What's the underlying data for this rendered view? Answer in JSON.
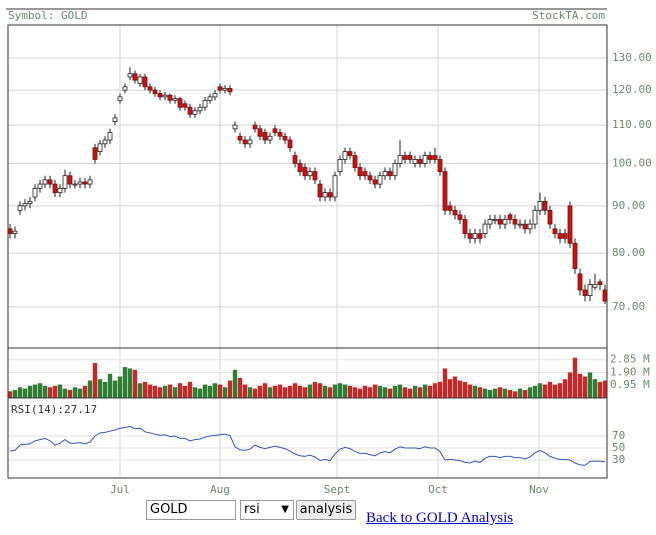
{
  "chart_data": {
    "type": "candlestick",
    "symbol_label": "Symbol: GOLD",
    "site": "StockTA.com",
    "log_y": true,
    "grid": true,
    "ylim": [
      63.2,
      141.1
    ],
    "yticks": [
      {
        "value": 130,
        "label": "130.00"
      },
      {
        "value": 120,
        "label": "120.00"
      },
      {
        "value": 110,
        "label": "110.00"
      },
      {
        "value": 100,
        "label": "100.00"
      },
      {
        "value": 90,
        "label": "90.00"
      },
      {
        "value": 80,
        "label": "80.00"
      },
      {
        "value": 70,
        "label": "70.00"
      }
    ],
    "xlim": [
      -0.4,
      119.4
    ],
    "xticks": [
      {
        "value": 22,
        "label": "Jul"
      },
      {
        "value": 42,
        "label": "Aug"
      },
      {
        "value": 65.4,
        "label": "Sept"
      },
      {
        "value": 85.6,
        "label": "Oct"
      },
      {
        "value": 105.8,
        "label": "Nov"
      }
    ],
    "up_color": "#ffffff",
    "down_color": "#cc1111",
    "candles": [
      [
        85,
        86,
        83,
        84
      ],
      [
        84,
        85.5,
        83,
        84.5
      ],
      [
        89,
        91,
        88,
        90
      ],
      [
        90,
        91.5,
        89,
        90.5
      ],
      [
        90.5,
        92,
        89.5,
        91
      ],
      [
        92,
        95,
        91,
        94
      ],
      [
        94,
        96,
        93,
        95
      ],
      [
        95,
        97,
        94,
        96
      ],
      [
        96,
        97,
        94,
        95
      ],
      [
        95,
        96,
        92,
        93
      ],
      [
        93,
        95,
        92,
        94
      ],
      [
        94,
        98.5,
        93,
        97
      ],
      [
        97,
        98,
        94,
        95
      ],
      [
        95,
        96,
        94,
        95
      ],
      [
        95,
        96.5,
        94,
        95.5
      ],
      [
        95.5,
        96.5,
        94,
        95
      ],
      [
        95,
        97,
        94,
        96
      ],
      [
        104,
        105,
        100,
        101
      ],
      [
        103,
        106,
        102,
        105
      ],
      [
        105,
        107,
        104,
        106
      ],
      [
        106,
        109,
        105,
        108
      ],
      [
        111,
        113,
        110,
        112
      ],
      [
        117,
        119,
        116,
        118
      ],
      [
        120,
        122,
        119,
        121
      ],
      [
        124,
        127,
        123,
        125
      ],
      [
        125,
        126,
        122,
        123
      ],
      [
        122,
        125,
        121,
        124
      ],
      [
        124,
        125,
        120,
        121
      ],
      [
        121,
        122,
        119,
        120
      ],
      [
        120,
        121,
        118,
        119
      ],
      [
        119,
        120,
        117,
        118
      ],
      [
        118,
        119.5,
        117,
        118.5
      ],
      [
        118.5,
        119,
        116,
        117
      ],
      [
        117,
        118.5,
        116,
        117.5
      ],
      [
        117.5,
        118,
        114,
        115
      ],
      [
        116,
        117,
        114,
        115
      ],
      [
        115,
        116,
        112,
        113
      ],
      [
        113,
        115,
        112,
        114
      ],
      [
        114,
        116,
        113,
        115
      ],
      [
        115,
        118,
        114,
        117
      ],
      [
        117,
        119,
        116,
        118
      ],
      [
        118,
        120,
        117,
        119
      ],
      [
        121,
        122,
        119,
        120
      ],
      [
        120,
        121.5,
        119,
        120.5
      ],
      [
        120.5,
        121.5,
        118.5,
        119.5
      ],
      [
        109,
        111,
        108,
        110
      ],
      [
        107,
        108,
        105,
        106
      ],
      [
        106,
        107,
        104,
        105
      ],
      [
        105,
        107,
        104,
        106
      ],
      [
        110,
        111,
        108,
        109
      ],
      [
        109,
        110,
        106,
        107
      ],
      [
        108,
        109,
        105,
        106
      ],
      [
        106,
        108,
        105,
        107
      ],
      [
        109,
        110,
        107,
        108
      ],
      [
        108,
        109,
        106,
        107
      ],
      [
        107,
        108,
        105,
        106
      ],
      [
        106,
        107,
        103,
        104
      ],
      [
        102,
        103,
        99,
        100
      ],
      [
        100,
        101,
        97,
        98
      ],
      [
        99,
        100,
        96,
        97
      ],
      [
        97,
        99,
        96,
        98
      ],
      [
        98,
        99,
        95,
        96
      ],
      [
        95,
        96,
        91,
        92
      ],
      [
        92,
        94,
        91,
        93
      ],
      [
        93,
        94,
        91,
        92
      ],
      [
        92,
        98,
        91,
        97
      ],
      [
        98,
        102,
        97,
        101
      ],
      [
        101,
        104,
        100,
        103
      ],
      [
        103,
        104,
        101,
        102
      ],
      [
        102,
        103,
        98,
        99
      ],
      [
        99,
        100,
        96,
        97
      ],
      [
        98,
        99,
        96,
        97
      ],
      [
        97,
        98,
        95,
        96
      ],
      [
        96,
        97,
        94,
        95
      ],
      [
        95,
        98,
        94,
        97
      ],
      [
        97,
        99,
        96,
        98
      ],
      [
        98,
        99,
        96,
        97
      ],
      [
        97,
        101,
        96,
        100
      ],
      [
        100,
        106,
        99,
        102
      ],
      [
        102,
        103,
        100,
        101
      ],
      [
        102,
        103,
        100,
        101
      ],
      [
        100,
        102,
        99,
        101
      ],
      [
        101,
        102,
        99,
        100
      ],
      [
        100,
        103,
        99,
        102
      ],
      [
        102,
        103,
        100,
        101
      ],
      [
        102,
        104,
        100,
        101
      ],
      [
        101,
        102,
        97,
        98
      ],
      [
        98,
        99,
        88,
        89
      ],
      [
        90,
        91,
        88,
        89
      ],
      [
        89,
        90,
        87,
        88
      ],
      [
        88,
        89,
        86,
        87
      ],
      [
        87,
        88,
        83,
        84
      ],
      [
        84,
        85,
        82,
        83
      ],
      [
        83,
        85,
        82,
        84
      ],
      [
        84,
        85,
        82,
        83
      ],
      [
        84,
        87,
        83,
        86
      ],
      [
        86,
        88,
        85,
        87
      ],
      [
        87,
        88,
        86,
        87
      ],
      [
        87,
        88,
        85,
        86
      ],
      [
        86,
        88,
        85,
        87
      ],
      [
        88,
        88.5,
        86,
        87
      ],
      [
        87,
        88,
        85,
        86
      ],
      [
        86,
        87,
        85,
        86
      ],
      [
        86,
        87,
        84,
        85
      ],
      [
        85,
        87,
        84,
        86
      ],
      [
        86,
        90,
        85,
        89
      ],
      [
        89,
        93,
        88,
        91
      ],
      [
        91,
        92,
        88,
        89
      ],
      [
        89,
        90,
        85,
        86
      ],
      [
        85,
        86,
        83,
        84
      ],
      [
        84,
        85,
        82,
        83
      ],
      [
        84,
        85,
        82,
        83
      ],
      [
        90,
        91,
        81,
        82
      ],
      [
        82,
        83,
        76,
        77
      ],
      [
        76,
        77,
        72,
        73
      ],
      [
        73,
        74,
        71,
        72
      ],
      [
        72,
        75,
        71,
        74
      ],
      [
        73.5,
        76,
        73,
        74
      ],
      [
        74.5,
        75,
        73,
        74
      ],
      [
        73,
        74,
        70.5,
        71
      ]
    ],
    "volume": {
      "ylim": [
        0,
        3.72
      ],
      "up_color": "#2e7d32",
      "down_color": "#c62828",
      "yticks": [
        {
          "value": 2.85,
          "label": "2.85 M"
        },
        {
          "value": 1.9,
          "label": "1.90 M"
        },
        {
          "value": 0.95,
          "label": "0.95 M"
        }
      ],
      "values": [
        0.5,
        0.6,
        0.8,
        0.7,
        0.9,
        1.0,
        1.1,
        0.9,
        0.8,
        0.9,
        1.0,
        0.7,
        0.6,
        0.8,
        0.7,
        0.9,
        1.3,
        2.6,
        1.4,
        1.2,
        1.8,
        1.3,
        1.6,
        2.3,
        2.2,
        2.1,
        1.1,
        1.2,
        1.0,
        0.9,
        0.8,
        0.9,
        1.0,
        0.8,
        1.1,
        0.9,
        1.2,
        0.8,
        0.7,
        1.0,
        0.9,
        1.1,
        1.0,
        0.8,
        1.3,
        2.1,
        1.5,
        1.0,
        0.8,
        0.7,
        0.9,
        1.1,
        0.8,
        0.9,
        1.0,
        0.8,
        0.9,
        1.1,
        0.9,
        0.8,
        1.0,
        1.2,
        1.1,
        0.9,
        0.8,
        1.0,
        1.1,
        1.0,
        0.9,
        0.8,
        0.7,
        0.9,
        0.8,
        1.0,
        0.9,
        0.8,
        0.7,
        0.9,
        1.0,
        0.8,
        0.7,
        0.9,
        0.8,
        1.0,
        0.9,
        1.1,
        1.2,
        2.2,
        1.4,
        1.6,
        1.3,
        1.2,
        1.0,
        0.9,
        0.8,
        0.7,
        0.6,
        0.7,
        0.8,
        0.7,
        0.6,
        0.5,
        0.7,
        0.6,
        0.8,
        0.9,
        1.1,
        1.0,
        1.2,
        1.0,
        1.1,
        1.4,
        1.9,
        3.0,
        1.8,
        1.6,
        1.9,
        1.4,
        1.2,
        1.3
      ]
    },
    "rsi": {
      "label": "RSI(14):27.17",
      "ylim": [
        0,
        133.3
      ],
      "yticks": [
        70,
        50,
        30
      ],
      "color": "#3355bb",
      "values": [
        45,
        46,
        55,
        56,
        57,
        62,
        64,
        66,
        62,
        55,
        58,
        64,
        58,
        58,
        59,
        57,
        60,
        70,
        75,
        76,
        78,
        80,
        83,
        84,
        86,
        82,
        83,
        77,
        75,
        73,
        71,
        72,
        69,
        70,
        66,
        66,
        62,
        64,
        65,
        68,
        70,
        71,
        72,
        73,
        71,
        52,
        47,
        46,
        48,
        55,
        51,
        49,
        51,
        53,
        51,
        49,
        45,
        40,
        37,
        36,
        38,
        35,
        29,
        31,
        29,
        40,
        48,
        51,
        49,
        44,
        41,
        41,
        39,
        37,
        42,
        44,
        42,
        48,
        52,
        50,
        50,
        50,
        49,
        52,
        50,
        50,
        44,
        30,
        31,
        30,
        29,
        26,
        25,
        28,
        26,
        33,
        36,
        36,
        34,
        36,
        36,
        34,
        34,
        32,
        35,
        42,
        46,
        42,
        36,
        33,
        31,
        31,
        30,
        25,
        22,
        21,
        28,
        28,
        28,
        27.17
      ]
    }
  },
  "controls": {
    "input": "GOLD",
    "select": "rsi",
    "button": "analysis",
    "link": "Back to GOLD Analysis"
  }
}
